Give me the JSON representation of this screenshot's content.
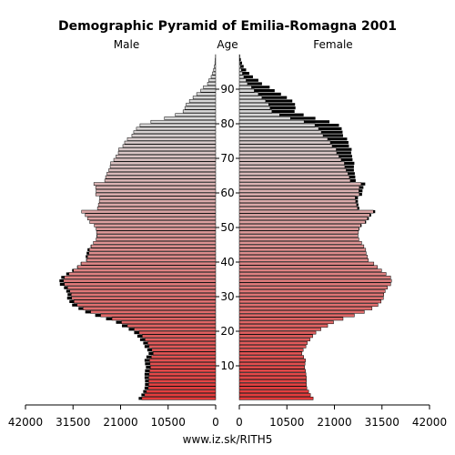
{
  "chart_data": {
    "type": "bar",
    "title": "Demographic Pyramid of Emilia-Romagna 2001",
    "male_label": "Male",
    "age_label": "Age",
    "female_label": "Female",
    "footer": "www.iz.sk/RITH5",
    "x_ticks_left": [
      "42000",
      "31500",
      "21000",
      "10500",
      "0"
    ],
    "x_ticks_right": [
      "0",
      "10500",
      "21000",
      "31500",
      "42000"
    ],
    "age_ticks": [
      "10",
      "20",
      "30",
      "40",
      "50",
      "60",
      "70",
      "80",
      "90"
    ],
    "xlim": [
      0,
      42000
    ],
    "age_range": [
      0,
      100
    ],
    "colors": {
      "young": "#e53a3a",
      "old": "#d8d8d8",
      "excess": "#000000",
      "outline": "#000000"
    },
    "series": [
      {
        "name": "Male",
        "values": [
          17000,
          16400,
          16000,
          15700,
          15600,
          15600,
          15700,
          15700,
          15600,
          15400,
          15600,
          15700,
          15300,
          14800,
          15100,
          15700,
          16000,
          16700,
          17300,
          18000,
          19200,
          20700,
          22000,
          24200,
          26600,
          28800,
          30300,
          31700,
          32300,
          32800,
          32700,
          33000,
          33500,
          34400,
          34500,
          34100,
          33000,
          31700,
          30600,
          29800,
          28600,
          28700,
          28500,
          28300,
          27600,
          27000,
          26400,
          26300,
          26300,
          26400,
          26800,
          27800,
          28300,
          28800,
          29600,
          26100,
          25900,
          25700,
          25600,
          26500,
          26400,
          26500,
          26900,
          24500,
          24300,
          24000,
          23600,
          23300,
          23200,
          22500,
          22000,
          21500,
          21400,
          20500,
          20100,
          19500,
          18500,
          18100,
          17500,
          16700,
          14300,
          11300,
          8900,
          7200,
          6800,
          6500,
          5800,
          5000,
          4200,
          3300,
          2700,
          1800,
          1500,
          1000,
          700,
          450,
          280,
          170,
          90,
          40
        ]
      },
      {
        "name": "Female",
        "values": [
          16300,
          15700,
          15300,
          14900,
          14800,
          14800,
          14800,
          14700,
          14600,
          14400,
          14500,
          14600,
          14200,
          13800,
          14100,
          14700,
          15000,
          15600,
          16200,
          16900,
          18000,
          19500,
          20800,
          22900,
          25400,
          27600,
          29300,
          30600,
          31300,
          31800,
          31900,
          32200,
          32700,
          33400,
          33600,
          33400,
          32400,
          31400,
          30500,
          29700,
          28500,
          28300,
          28000,
          27900,
          27500,
          27000,
          26400,
          26200,
          26300,
          26500,
          27000,
          28000,
          28600,
          29100,
          30000,
          26500,
          26300,
          26200,
          26200,
          27100,
          27200,
          27400,
          27800,
          25700,
          25600,
          25500,
          25300,
          25300,
          25400,
          25000,
          24900,
          24700,
          24800,
          24200,
          24100,
          23800,
          22900,
          22800,
          22600,
          22000,
          19900,
          16800,
          14200,
          12200,
          12400,
          12300,
          11700,
          10500,
          9200,
          7800,
          6700,
          5000,
          4200,
          3000,
          2200,
          1500,
          950,
          600,
          330,
          150
        ]
      }
    ]
  }
}
